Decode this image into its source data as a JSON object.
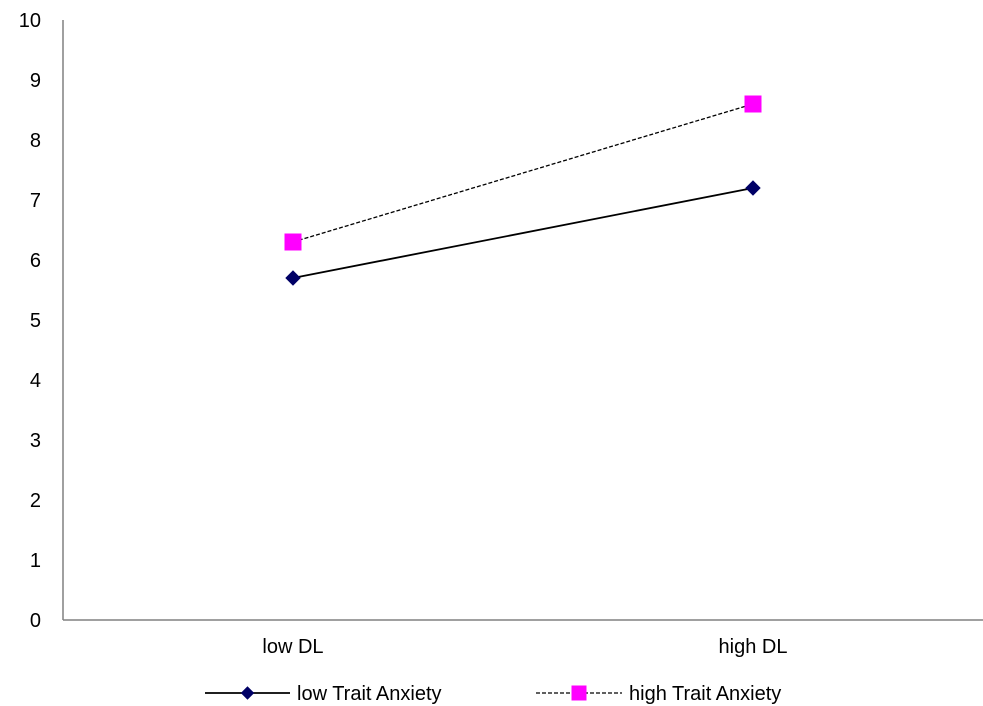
{
  "chart_data": {
    "type": "line",
    "title": "",
    "xlabel": "",
    "ylabel": "",
    "categories": [
      "low DL",
      "high DL"
    ],
    "ylim": [
      0,
      10
    ],
    "yticks": [
      0,
      1,
      2,
      3,
      4,
      5,
      6,
      7,
      8,
      9,
      10
    ],
    "grid": false,
    "legend_position": "bottom",
    "series": [
      {
        "name": "low Trait Anxiety",
        "values": [
          5.7,
          7.2
        ],
        "color": "#000066",
        "line_color": "#000000",
        "line_style": "solid",
        "marker": "diamond"
      },
      {
        "name": "high Trait Anxiety",
        "values": [
          6.3,
          8.6
        ],
        "color": "#ff00ff",
        "line_color": "#000000",
        "line_style": "dashed",
        "marker": "square"
      }
    ]
  }
}
